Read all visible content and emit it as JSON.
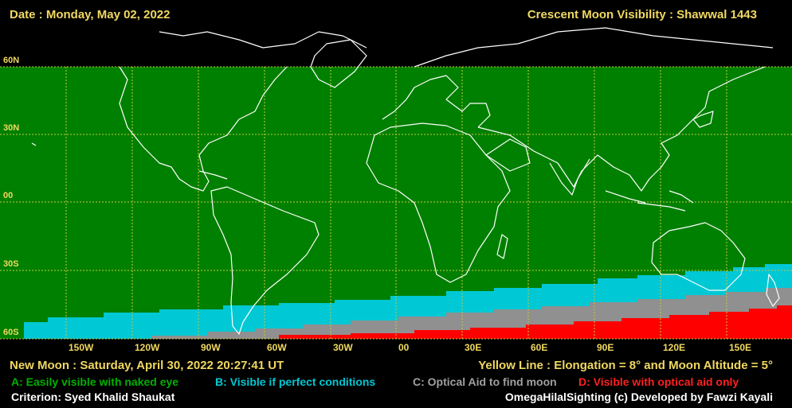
{
  "header": {
    "date": "Date : Monday, May 02, 2022",
    "title": "Crescent Moon Visibility : Shawwal  1443"
  },
  "map": {
    "lat_labels": [
      "60N",
      "30N",
      "00",
      "30S",
      "60S"
    ],
    "lon_labels": [
      "150W",
      "120W",
      "90W",
      "60W",
      "30W",
      "00",
      "30E",
      "60E",
      "90E",
      "120E",
      "150E"
    ],
    "colors": {
      "zone_a": "#008000",
      "zone_b": "#00c8d4",
      "zone_c": "#909090",
      "zone_d": "#ff0000",
      "grid": "#c8c840",
      "coast": "#ffffff"
    }
  },
  "footer": {
    "new_moon": "New Moon : Saturday, April 30, 2022  20:27:41  UT",
    "yellow_line": "Yellow Line : Elongation = 8°  and Moon Altitude = 5°",
    "legend": {
      "a": "A: Easily visible with naked eye",
      "b": "B: Visible if perfect conditions",
      "c": "C: Optical Aid to find moon",
      "d": "D: Visible with optical aid only"
    },
    "criterion": "Criterion: Syed Khalid Shaukat",
    "credit": "OmegaHilalSighting  (c)  Developed by Fawzi Kayali"
  }
}
